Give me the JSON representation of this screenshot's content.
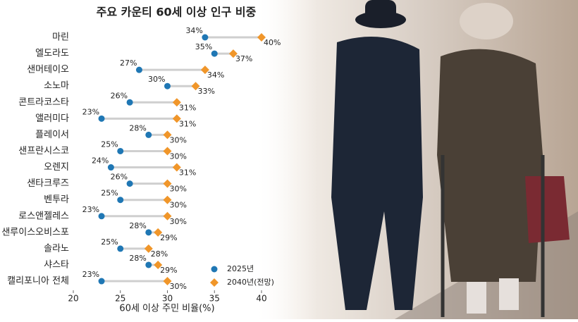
{
  "chart_data": {
    "type": "dumbbell",
    "title": "주요 카운티 60세 이상 인구 비중",
    "x_label": "60세 이상 주민 비율(%)",
    "categories": [
      "마린",
      "엘도라도",
      "샌머테이오",
      "소노마",
      "콘트라코스타",
      "앨러미다",
      "플레이서",
      "샌프란시스코",
      "오렌지",
      "샌타크루즈",
      "벤투라",
      "로스앤젤레스",
      "샌루이스오비스포",
      "솔라노",
      "샤스타",
      "캘리포니아 전체"
    ],
    "series": [
      {
        "name": "2025년",
        "color": "#1f77b4",
        "values": [
          34,
          35,
          27,
          30,
          26,
          23,
          28,
          25,
          24,
          26,
          25,
          23,
          28,
          25,
          28,
          23
        ],
        "value_labels": [
          "34%",
          "35%",
          "27%",
          "30%",
          "26%",
          "23%",
          "28%",
          "25%",
          "24%",
          "26%",
          "25%",
          "23%",
          "28%",
          "25%",
          "28%",
          "23%"
        ]
      },
      {
        "name": "2040년(전망)",
        "color": "#f0962a",
        "values": [
          40,
          37,
          34,
          33,
          31,
          31,
          30,
          30,
          31,
          30,
          30,
          30,
          29,
          28,
          29,
          30
        ],
        "value_labels": [
          "40%",
          "37%",
          "34%",
          "33%",
          "31%",
          "31%",
          "30%",
          "30%",
          "31%",
          "30%",
          "30%",
          "30%",
          "29%",
          "28%",
          "29%",
          "30%"
        ]
      }
    ],
    "xlim": [
      20,
      40
    ],
    "xticks": [
      20,
      25,
      30,
      35,
      40
    ]
  }
}
